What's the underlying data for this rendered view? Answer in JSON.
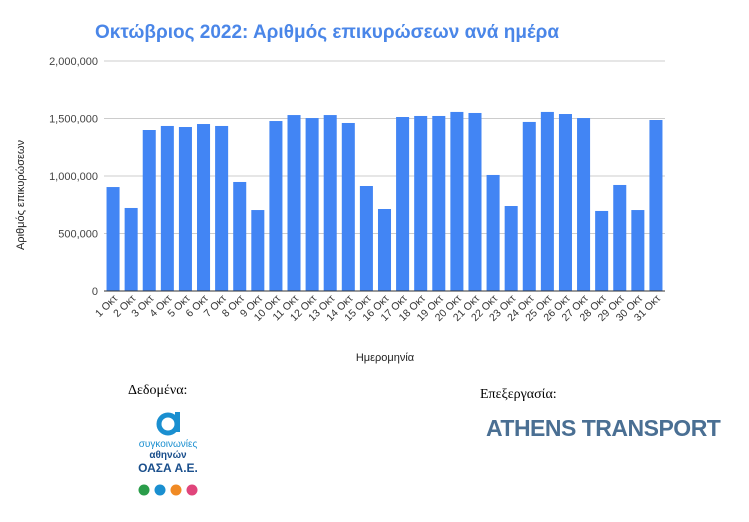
{
  "chart_data": {
    "type": "bar",
    "title": "Οκτώβριος 2022: Αριθμός επικυρώσεων ανά ημέρα",
    "x_label": "Ημερομηνία",
    "y_label": "Αριθμός επικυρώσεων",
    "categories": [
      "1 Οκτ",
      "2 Οκτ",
      "3 Οκτ",
      "4 Οκτ",
      "5 Οκτ",
      "6 Οκτ",
      "7 Οκτ",
      "8 Οκτ",
      "9 Οκτ",
      "10 Οκτ",
      "11 Οκτ",
      "12 Οκτ",
      "13 Οκτ",
      "14 Οκτ",
      "15 Οκτ",
      "16 Οκτ",
      "17 Οκτ",
      "18 Οκτ",
      "19 Οκτ",
      "20 Οκτ",
      "21 Οκτ",
      "22 Οκτ",
      "23 Οκτ",
      "24 Οκτ",
      "25 Οκτ",
      "26 Οκτ",
      "27 Οκτ",
      "28 Οκτ",
      "29 Οκτ",
      "30 Οκτ",
      "31 Οκτ"
    ],
    "values": [
      904000,
      722000,
      1400000,
      1435000,
      1426000,
      1452000,
      1435000,
      948000,
      704000,
      1478000,
      1530000,
      1504000,
      1530000,
      1461000,
      913000,
      713000,
      1513000,
      1522000,
      1522000,
      1557000,
      1548000,
      1009000,
      739000,
      1470000,
      1557000,
      1539000,
      1504000,
      696000,
      922000,
      704000,
      1487000
    ],
    "color": "#4285f4",
    "ylim": [
      0,
      2000000
    ],
    "yticks": [
      0,
      {
        "value": 500000,
        "label": "500,000"
      },
      {
        "value": 1000000,
        "label": "1,000,000"
      },
      {
        "value": 1500000,
        "label": "1,500,000"
      },
      {
        "value": 2000000,
        "label": "2,000,000"
      }
    ],
    "grid": true
  },
  "footer": {
    "data_label": "Δεδομένα:",
    "processing_label": "Επεξεργασία:",
    "oasa_line1": "συγκοινωνίες",
    "oasa_line2": "αθηνών",
    "oasa_line3": "ΟΑΣΑ Α.Ε.",
    "brand": "ATHENS TRANSPORT"
  }
}
